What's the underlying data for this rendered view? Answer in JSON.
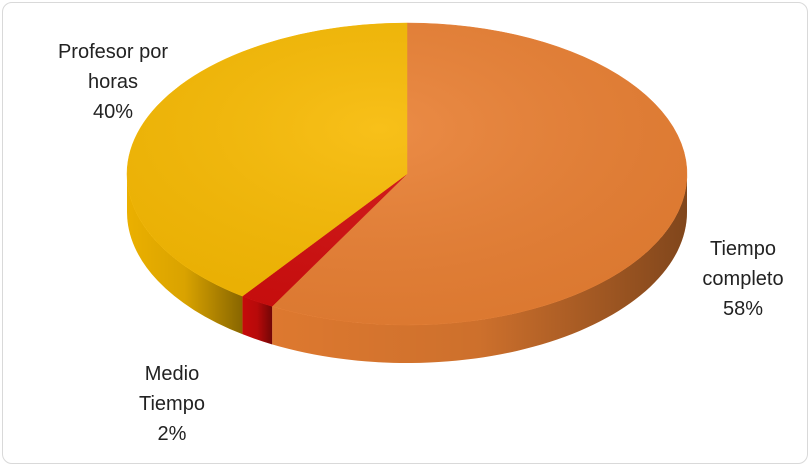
{
  "chart_data": {
    "type": "pie",
    "title": "",
    "slices": [
      {
        "label_lines": [
          "Tiempo",
          "completo"
        ],
        "value": 58,
        "value_label": "58%",
        "color": "#E97F32",
        "dark": "#8C4317"
      },
      {
        "label_lines": [
          "Medio",
          "Tiempo"
        ],
        "value": 2,
        "value_label": "2%",
        "color": "#D00B0B",
        "dark": "#7A0505"
      },
      {
        "label_lines": [
          "Profesor por",
          "horas"
        ],
        "value": 40,
        "value_label": "40%",
        "color": "#F7B900",
        "dark": "#B57F00"
      }
    ],
    "legend": "none",
    "style": "3d"
  }
}
